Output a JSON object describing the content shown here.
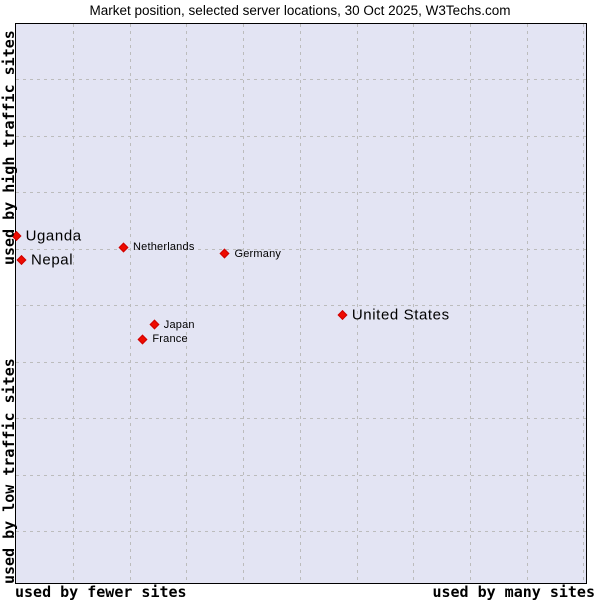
{
  "title": "Market position, selected server locations, 30 Oct 2025, W3Techs.com",
  "axes": {
    "y_top": "used by high traffic sites",
    "y_bottom": "used by low traffic sites",
    "x_left": "used by fewer sites",
    "x_right": "used by many sites"
  },
  "colors": {
    "plot_background": "#e3e4f3",
    "gridline": "#bcbcbc",
    "plot_border": "#000000",
    "marker": "#ee0b00",
    "text": "#000000"
  },
  "marker_icon": "red-diamond",
  "chart_data": {
    "type": "scatter",
    "title": "Market position, selected server locations, 30 Oct 2025, W3Techs.com",
    "source": "W3Techs.com",
    "date": "30 Oct 2025",
    "x_axis": {
      "left_label": "used by fewer sites",
      "right_label": "used by many sites",
      "ticks": "none"
    },
    "y_axis": {
      "top_label": "used by high traffic sites",
      "bottom_label": "used by low traffic sites",
      "ticks": "none"
    },
    "grid": {
      "visible": true,
      "style": "dashed",
      "v_lines": 10,
      "h_lines": 9
    },
    "legend": "none",
    "points": [
      {
        "label": "Uganda",
        "x_pct": 0.45,
        "y_pct": 37.9,
        "label_size": "large"
      },
      {
        "label": "Nepal",
        "x_pct": 1.4,
        "y_pct": 42.2,
        "label_size": "large"
      },
      {
        "label": "Netherlands",
        "x_pct": 19.3,
        "y_pct": 39.9,
        "label_size": "small"
      },
      {
        "label": "Germany",
        "x_pct": 37.1,
        "y_pct": 41.1,
        "label_size": "small"
      },
      {
        "label": "Japan",
        "x_pct": 24.7,
        "y_pct": 53.8,
        "label_size": "small"
      },
      {
        "label": "France",
        "x_pct": 22.7,
        "y_pct": 56.4,
        "label_size": "small"
      },
      {
        "label": "United States",
        "x_pct": 57.7,
        "y_pct": 52.0,
        "label_size": "large"
      }
    ]
  }
}
